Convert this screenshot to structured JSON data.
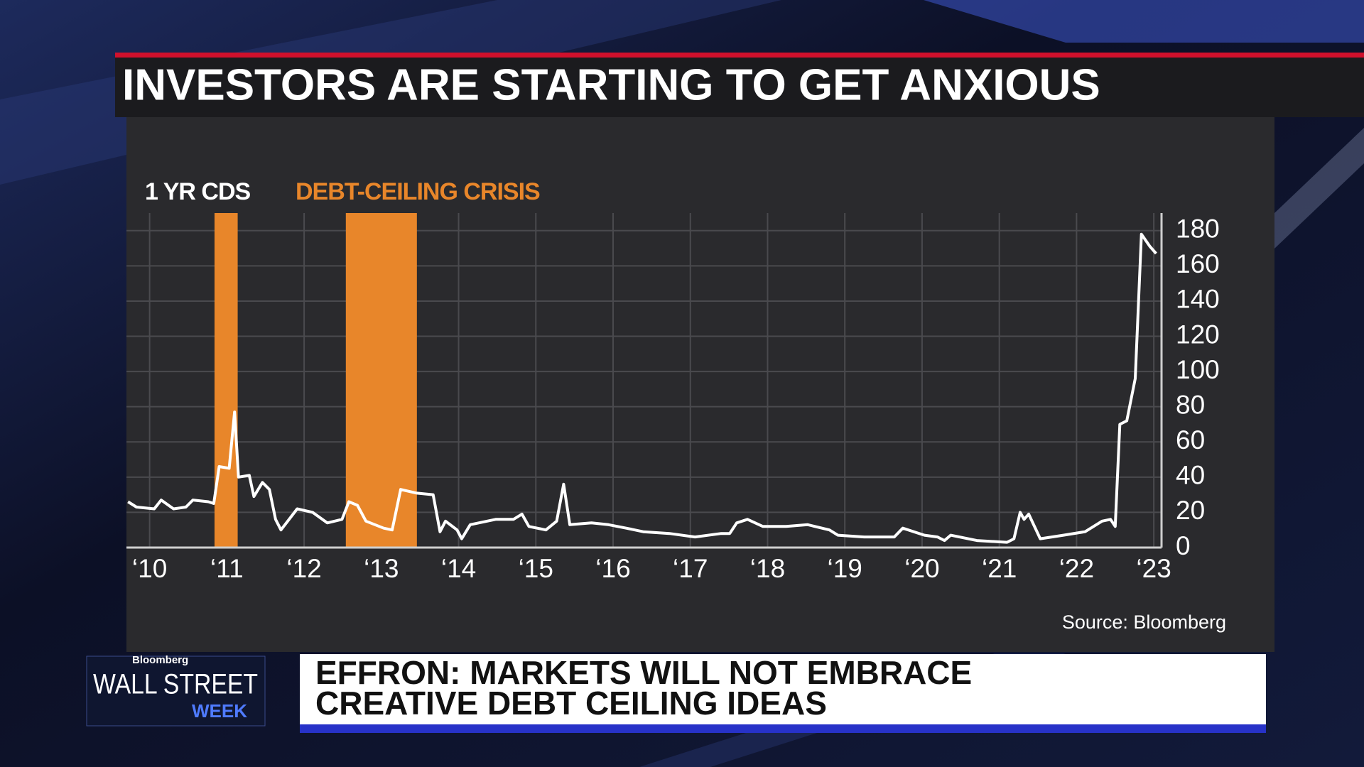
{
  "headline": "INVESTORS ARE STARTING TO GET ANXIOUS",
  "chart_data": {
    "type": "line",
    "series": [
      {
        "name": "1 YR CDS",
        "color": "#ffffff",
        "values": [
          26,
          23,
          22,
          27,
          22,
          23,
          27,
          26,
          25,
          46,
          45,
          77,
          40,
          41,
          29,
          37,
          33,
          16,
          10,
          22,
          20,
          14,
          16,
          26,
          24,
          15,
          11,
          10,
          33,
          31,
          30,
          9,
          15,
          10,
          5,
          13,
          16,
          16,
          19,
          12,
          10,
          15,
          36,
          13,
          14,
          13,
          11,
          9,
          8,
          6,
          8,
          8,
          14,
          16,
          12,
          12,
          13,
          10,
          7,
          6,
          6,
          11,
          7,
          6,
          4,
          7,
          4,
          3,
          5,
          20,
          16,
          19,
          5,
          7,
          9,
          15,
          16,
          12,
          70,
          72,
          96,
          178,
          171,
          167
        ]
      }
    ],
    "x": [
      2009.72,
      2009.83,
      2010.06,
      2010.15,
      2010.31,
      2010.47,
      2010.56,
      2010.76,
      2010.83,
      2010.9,
      2011.03,
      2011.1,
      2011.15,
      2011.29,
      2011.35,
      2011.46,
      2011.55,
      2011.63,
      2011.7,
      2011.91,
      2012.11,
      2012.3,
      2012.49,
      2012.58,
      2012.69,
      2012.8,
      2013.03,
      2013.14,
      2013.25,
      2013.45,
      2013.67,
      2013.76,
      2013.83,
      2013.98,
      2014.04,
      2014.15,
      2014.48,
      2014.71,
      2014.82,
      2014.91,
      2015.13,
      2015.27,
      2015.36,
      2015.44,
      2015.72,
      2015.94,
      2016.17,
      2016.39,
      2016.73,
      2017.06,
      2017.4,
      2017.51,
      2017.6,
      2017.74,
      2017.94,
      2018.24,
      2018.52,
      2018.8,
      2018.91,
      2019.25,
      2019.64,
      2019.75,
      2020.03,
      2020.2,
      2020.29,
      2020.37,
      2020.71,
      2021.1,
      2021.19,
      2021.27,
      2021.32,
      2021.38,
      2021.53,
      2021.83,
      2022.11,
      2022.33,
      2022.44,
      2022.5,
      2022.56,
      2022.65,
      2022.76,
      2022.84,
      2022.95,
      2023.03
    ],
    "regions": {
      "name": "DEBT-CEILING CRISIS",
      "color": "#e8862a",
      "spans": [
        [
          2010.84,
          2011.14
        ],
        [
          2012.54,
          2013.46
        ]
      ]
    },
    "xlim": [
      2009.7,
      2023.1
    ],
    "xticks": [
      {
        "value": 2010,
        "label": "‘10"
      },
      {
        "value": 2011,
        "label": "‘11"
      },
      {
        "value": 2012,
        "label": "‘12"
      },
      {
        "value": 2013,
        "label": "‘13"
      },
      {
        "value": 2014,
        "label": "‘14"
      },
      {
        "value": 2015,
        "label": "‘15"
      },
      {
        "value": 2016,
        "label": "‘16"
      },
      {
        "value": 2017,
        "label": "‘17"
      },
      {
        "value": 2018,
        "label": "‘18"
      },
      {
        "value": 2019,
        "label": "‘19"
      },
      {
        "value": 2020,
        "label": "‘20"
      },
      {
        "value": 2021,
        "label": "‘21"
      },
      {
        "value": 2022,
        "label": "‘22"
      },
      {
        "value": 2023,
        "label": "‘23"
      }
    ],
    "ylim": [
      0,
      190
    ],
    "yticks": [
      0,
      20,
      40,
      60,
      80,
      100,
      120,
      140,
      160,
      180
    ],
    "grid": true
  },
  "source": "Source: Bloomberg",
  "logo": {
    "brand": "Bloomberg",
    "show": "WALL STREET",
    "sub": "WEEK"
  },
  "lower_third": {
    "lines": [
      "EFFRON: MARKETS WILL NOT EMBRACE",
      "CREATIVE DEBT CEILING IDEAS"
    ]
  }
}
